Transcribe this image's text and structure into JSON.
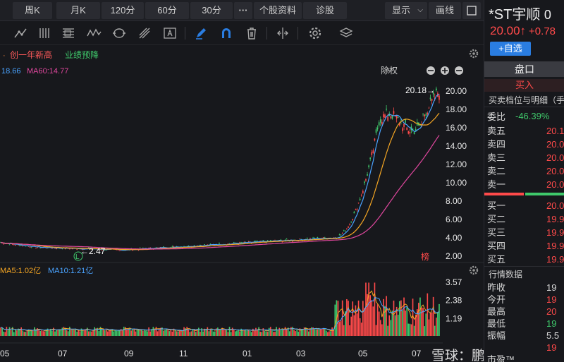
{
  "periods": [
    "周K",
    "月K",
    "120分",
    "60分",
    "30分",
    "···",
    "个股资料",
    "诊股"
  ],
  "display_menu": "显示",
  "draw_label": "画线",
  "indicators": {
    "tag1": "创一年新高",
    "tag2": "业绩预降",
    "ma_line": "18.66",
    "ma60": "MA60:14.77",
    "fq": "除权",
    "vol_ma5": "MA5:1.02亿",
    "vol_ma10": "MA10:1.21亿"
  },
  "price_axis": [
    "20.00",
    "18.00",
    "16.00",
    "14.00",
    "12.00",
    "10.00",
    "8.00",
    "6.00",
    "4.00",
    "2.00"
  ],
  "vol_axis": [
    "3.57",
    "2.38",
    "1.19"
  ],
  "date_axis": [
    "05",
    "07",
    "09",
    "11",
    "01",
    "03",
    "05",
    "07"
  ],
  "annotations": {
    "high": "20.18→",
    "low": "←2.47",
    "low_marker": "L",
    "bang_marker": "榜"
  },
  "watermark": "雪球：鹏哥投研",
  "stock": {
    "name": "*ST宇顺",
    "code_prefix": "0",
    "price": "20.00↑",
    "change": "+0.78",
    "add_watch": "+自选"
  },
  "panel": {
    "title": "盘口",
    "buy_label": "买入",
    "detail_title": "买卖档位与明细（手",
    "weibi_label": "委比",
    "weibi_value": "-46.39%",
    "asks": [
      {
        "label": "卖五",
        "price": "20.1"
      },
      {
        "label": "卖四",
        "price": "20.0"
      },
      {
        "label": "卖三",
        "price": "20.0"
      },
      {
        "label": "卖二",
        "price": "20.0"
      },
      {
        "label": "卖一",
        "price": "20.0"
      }
    ],
    "bids": [
      {
        "label": "买一",
        "price": "20.0"
      },
      {
        "label": "买二",
        "price": "19.9"
      },
      {
        "label": "买三",
        "price": "19.9"
      },
      {
        "label": "买四",
        "price": "19.9"
      },
      {
        "label": "买五",
        "price": "19.9"
      }
    ],
    "market_title": "行情数据",
    "market": [
      {
        "label": "昨收",
        "value": "19"
      },
      {
        "label": "今开",
        "value": "19"
      },
      {
        "label": "最高",
        "value": "20"
      },
      {
        "label": "最低",
        "value": "19"
      },
      {
        "label": "振幅",
        "value": "5.5"
      },
      {
        "label": "",
        "value": "19"
      },
      {
        "label": "市盈™",
        "value": ""
      }
    ]
  },
  "colors": {
    "up": "#ff4a4a",
    "down": "#3fc96b",
    "ma_short": "#4aa3ff",
    "ma_mid": "#f5a623",
    "ma_long": "#e0479e",
    "accent_blue": "#2a7de1"
  }
}
